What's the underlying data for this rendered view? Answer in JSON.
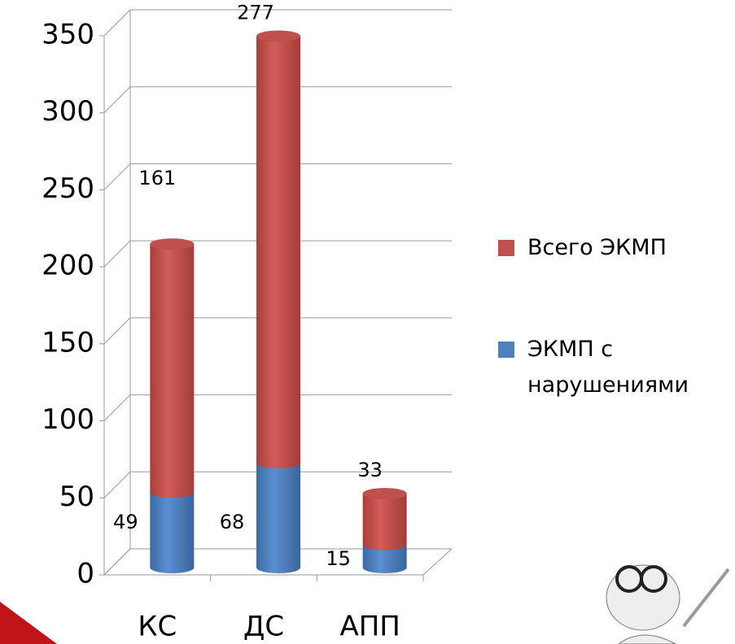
{
  "chart_data": {
    "type": "bar",
    "stacked": true,
    "categories": [
      "КС",
      "ДС",
      "АПП"
    ],
    "series": [
      {
        "name": "ЭКМП с нарушениями",
        "color": "#4f81bd",
        "values": [
          49,
          68,
          15
        ]
      },
      {
        "name": "Всего ЭКМП",
        "color": "#c0504d",
        "values": [
          161,
          277,
          33
        ]
      }
    ],
    "ylim": [
      0,
      350
    ],
    "yticks": [
      0,
      50,
      100,
      150,
      200,
      250,
      300,
      350
    ],
    "grid": true,
    "legend": "right"
  }
}
